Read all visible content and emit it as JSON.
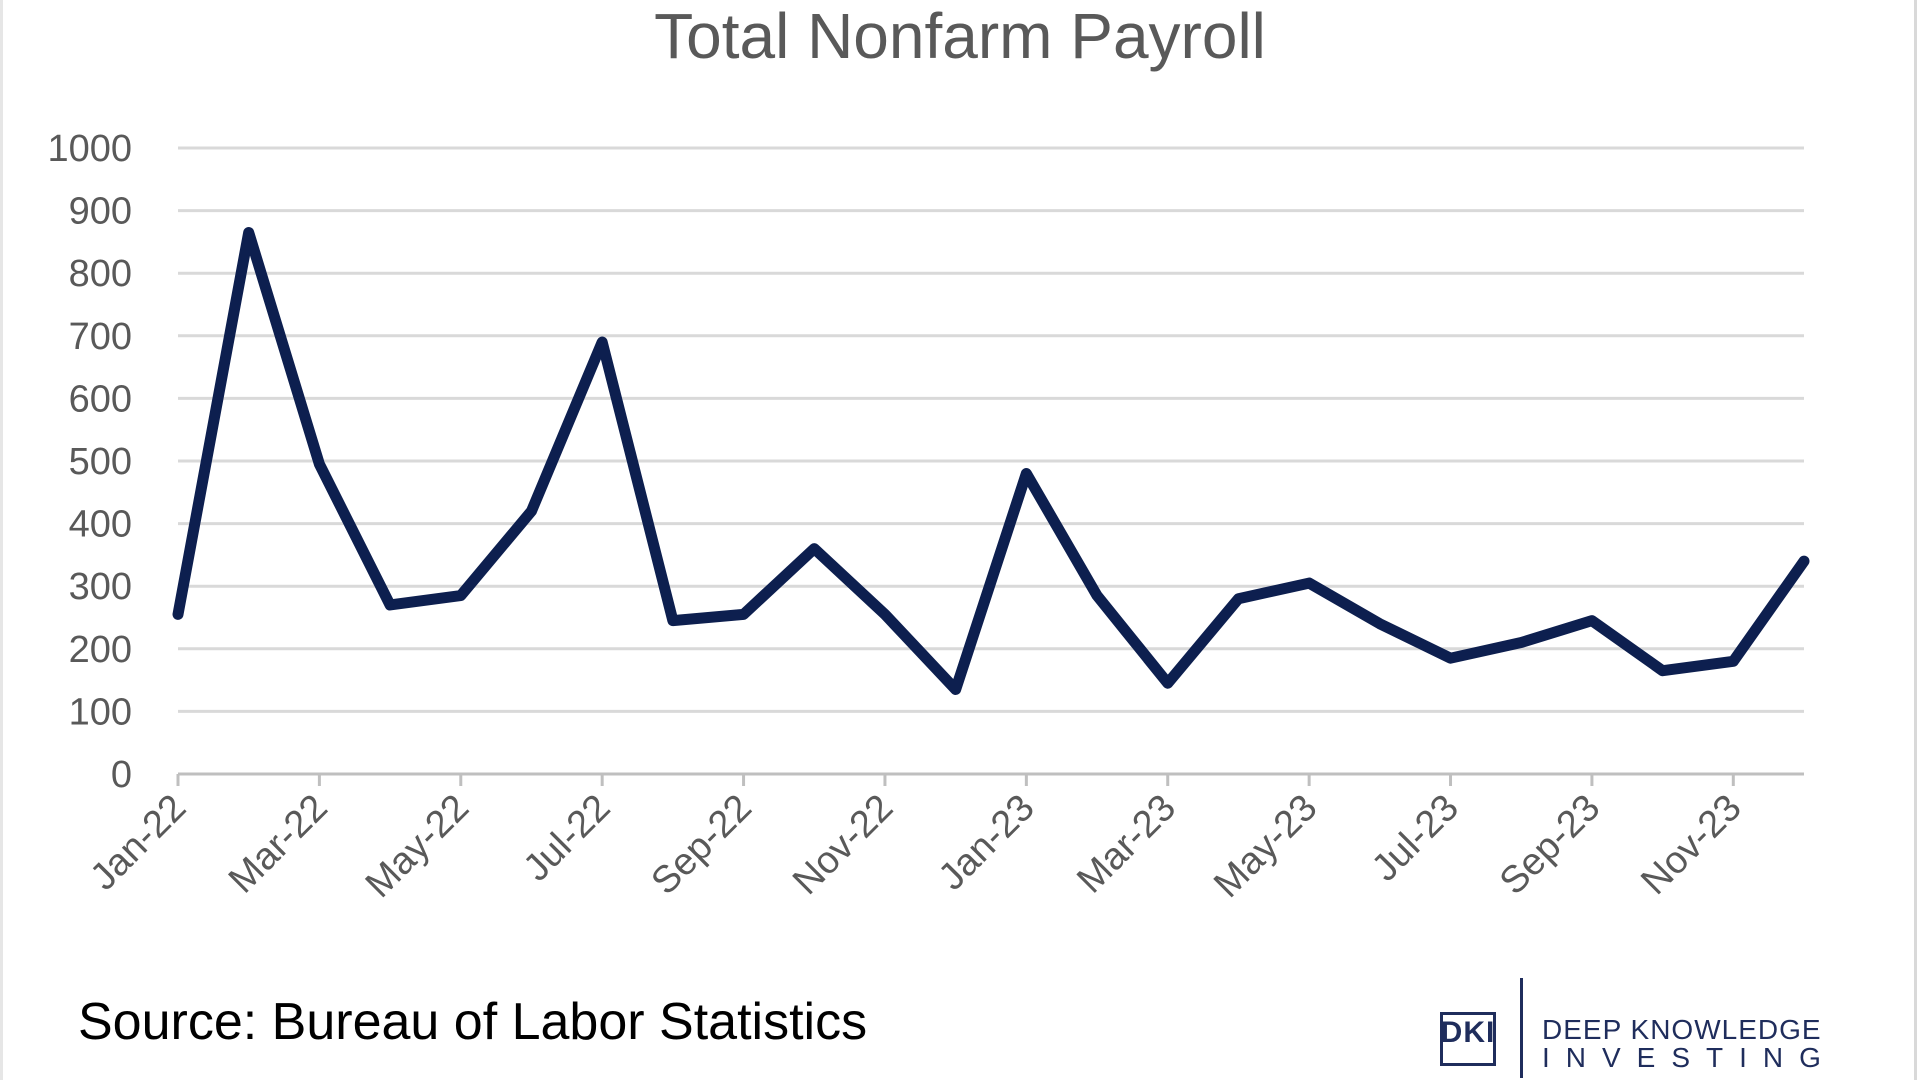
{
  "chart_data": {
    "type": "line",
    "title": "Total Nonfarm Payroll",
    "xlabel": "",
    "ylabel": "",
    "ylim": [
      0,
      1000
    ],
    "yticks": [
      "0",
      "100",
      "200",
      "300",
      "400",
      "500",
      "600",
      "700",
      "800",
      "900",
      "1000"
    ],
    "grid": true,
    "legend": "none",
    "x_tick_labels": [
      "Jan-22",
      "Mar-22",
      "May-22",
      "Jul-22",
      "Sep-22",
      "Nov-22",
      "Jan-23",
      "Mar-23",
      "May-23",
      "Jul-23",
      "Sep-23",
      "Nov-23"
    ],
    "x": [
      "Jan-22",
      "Feb-22",
      "Mar-22",
      "Apr-22",
      "May-22",
      "Jun-22",
      "Jul-22",
      "Aug-22",
      "Sep-22",
      "Oct-22",
      "Nov-22",
      "Dec-22",
      "Jan-23",
      "Feb-23",
      "Mar-23",
      "Apr-23",
      "May-23",
      "Jun-23",
      "Jul-23",
      "Aug-23",
      "Sep-23",
      "Oct-23",
      "Nov-23",
      "Dec-23"
    ],
    "series": [
      {
        "name": "",
        "color": "#0d1f4f",
        "values": [
          255,
          865,
          495,
          270,
          285,
          420,
          690,
          245,
          255,
          360,
          255,
          135,
          480,
          285,
          145,
          280,
          305,
          240,
          185,
          210,
          245,
          165,
          180,
          340
        ]
      }
    ]
  },
  "source": "Source: Bureau of Labor Statistics",
  "logo": {
    "mark": "DKI",
    "line1": "DEEP KNOWLEDGE",
    "line2": "INVESTING",
    "color": "#1f2d5c"
  }
}
